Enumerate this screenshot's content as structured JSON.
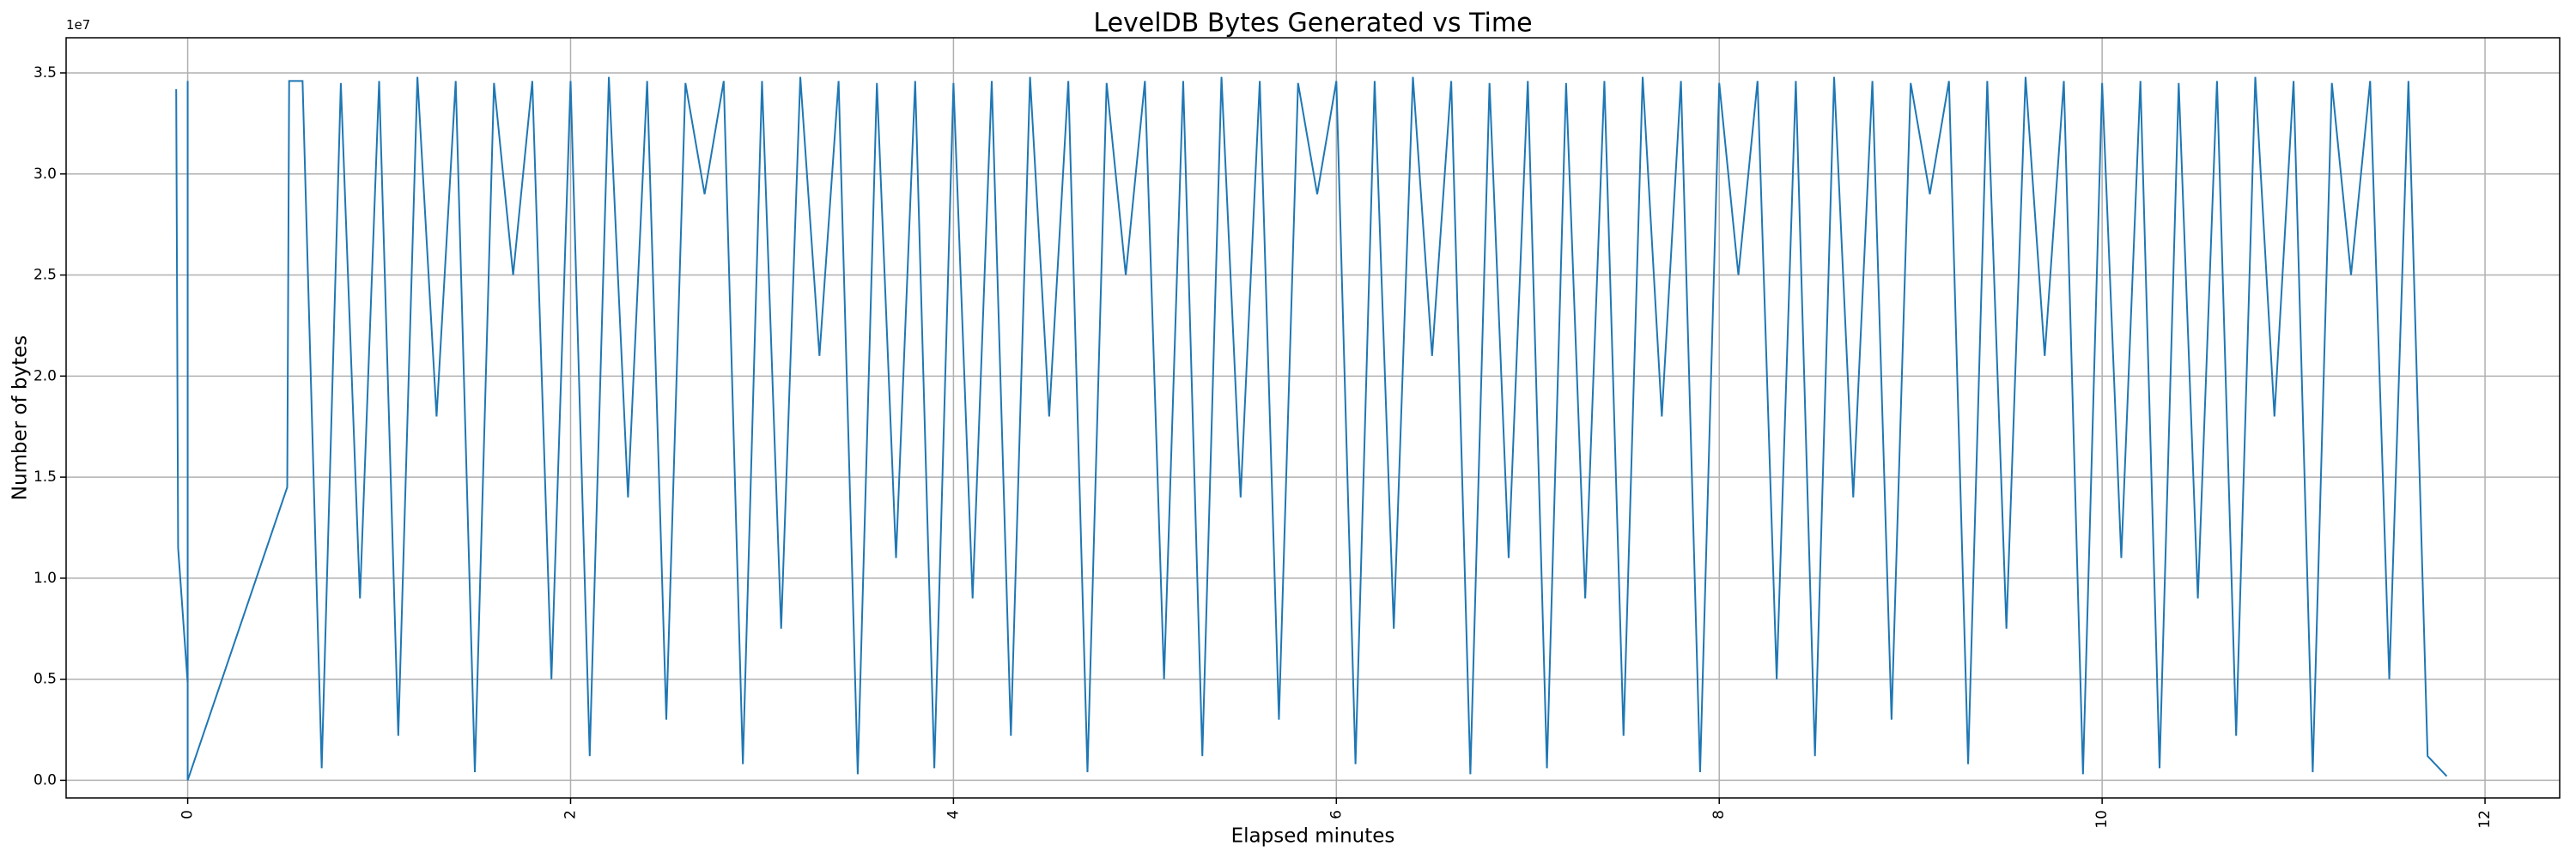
{
  "chart_data": {
    "type": "line",
    "title": "LevelDB Bytes Generated vs Time",
    "xlabel": "Elapsed minutes",
    "ylabel": "Number of bytes",
    "y_offset_label": "1e7",
    "color": "#1f77b4",
    "grid": true,
    "xlim": [
      -0.635,
      12.39
    ],
    "ylim": [
      -873000,
      36740000
    ],
    "xticks": [
      0,
      2,
      4,
      6,
      8,
      10,
      12
    ],
    "yticks": [
      {
        "value": 0,
        "label": "0.0"
      },
      {
        "value": 5000000,
        "label": "0.5"
      },
      {
        "value": 10000000,
        "label": "1.0"
      },
      {
        "value": 15000000,
        "label": "1.5"
      },
      {
        "value": 20000000,
        "label": "2.0"
      },
      {
        "value": 25000000,
        "label": "2.5"
      },
      {
        "value": 30000000,
        "label": "3.0"
      },
      {
        "value": 35000000,
        "label": "3.5"
      }
    ],
    "x": [
      -0.06,
      -0.05,
      0,
      0,
      0,
      0.52,
      0.53,
      0.6,
      0.7,
      0.8,
      0.9,
      1.0,
      1.1,
      1.2,
      1.3,
      1.4,
      1.5,
      1.6,
      1.7,
      1.8,
      1.9,
      2.0,
      2.1,
      2.2,
      2.3,
      2.4,
      2.5,
      2.6,
      2.7,
      2.8,
      2.9,
      3.0,
      3.1,
      3.2,
      3.3,
      3.4,
      3.5,
      3.6,
      3.7,
      3.8,
      3.9,
      4.0,
      4.1,
      4.2,
      4.3,
      4.4,
      4.5,
      4.6,
      4.7,
      4.8,
      4.9,
      5.0,
      5.1,
      5.2,
      5.3,
      5.4,
      5.5,
      5.6,
      5.7,
      5.8,
      5.9,
      6.0,
      6.1,
      6.2,
      6.3,
      6.4,
      6.5,
      6.6,
      6.7,
      6.8,
      6.9,
      7.0,
      7.1,
      7.2,
      7.3,
      7.4,
      7.5,
      7.6,
      7.7,
      7.8,
      7.9,
      8.0,
      8.1,
      8.2,
      8.3,
      8.4,
      8.5,
      8.6,
      8.7,
      8.8,
      8.9,
      9.0,
      9.1,
      9.2,
      9.3,
      9.4,
      9.5,
      9.6,
      9.7,
      9.8,
      9.9,
      10.0,
      10.1,
      10.2,
      10.3,
      10.4,
      10.5,
      10.6,
      10.7,
      10.8,
      10.9,
      11.0,
      11.1,
      11.2,
      11.3,
      11.4,
      11.5,
      11.6,
      11.7,
      11.8
    ],
    "values": [
      34200000,
      11500000,
      4800000,
      34600000,
      0,
      14500000,
      34600000,
      34600000,
      600000,
      34500000,
      9000000,
      34600000,
      2200000,
      34800000,
      18000000,
      34600000,
      400000,
      34500000,
      25000000,
      34600000,
      5000000,
      34600000,
      1200000,
      34800000,
      14000000,
      34600000,
      3000000,
      34500000,
      29000000,
      34600000,
      800000,
      34600000,
      7500000,
      34800000,
      21000000,
      34600000,
      300000,
      34500000,
      11000000,
      34600000,
      600000,
      34500000,
      9000000,
      34600000,
      2200000,
      34800000,
      18000000,
      34600000,
      400000,
      34500000,
      25000000,
      34600000,
      5000000,
      34600000,
      1200000,
      34800000,
      14000000,
      34600000,
      3000000,
      34500000,
      29000000,
      34600000,
      800000,
      34600000,
      7500000,
      34800000,
      21000000,
      34600000,
      300000,
      34500000,
      11000000,
      34600000,
      600000,
      34500000,
      9000000,
      34600000,
      2200000,
      34800000,
      18000000,
      34600000,
      400000,
      34500000,
      25000000,
      34600000,
      5000000,
      34600000,
      1200000,
      34800000,
      14000000,
      34600000,
      3000000,
      34500000,
      29000000,
      34600000,
      800000,
      34600000,
      7500000,
      34800000,
      21000000,
      34600000,
      300000,
      34500000,
      11000000,
      34600000,
      600000,
      34500000,
      9000000,
      34600000,
      2200000,
      34800000,
      18000000,
      34600000,
      400000,
      34500000,
      25000000,
      34600000,
      5000000,
      34600000,
      1200000,
      200000
    ]
  }
}
